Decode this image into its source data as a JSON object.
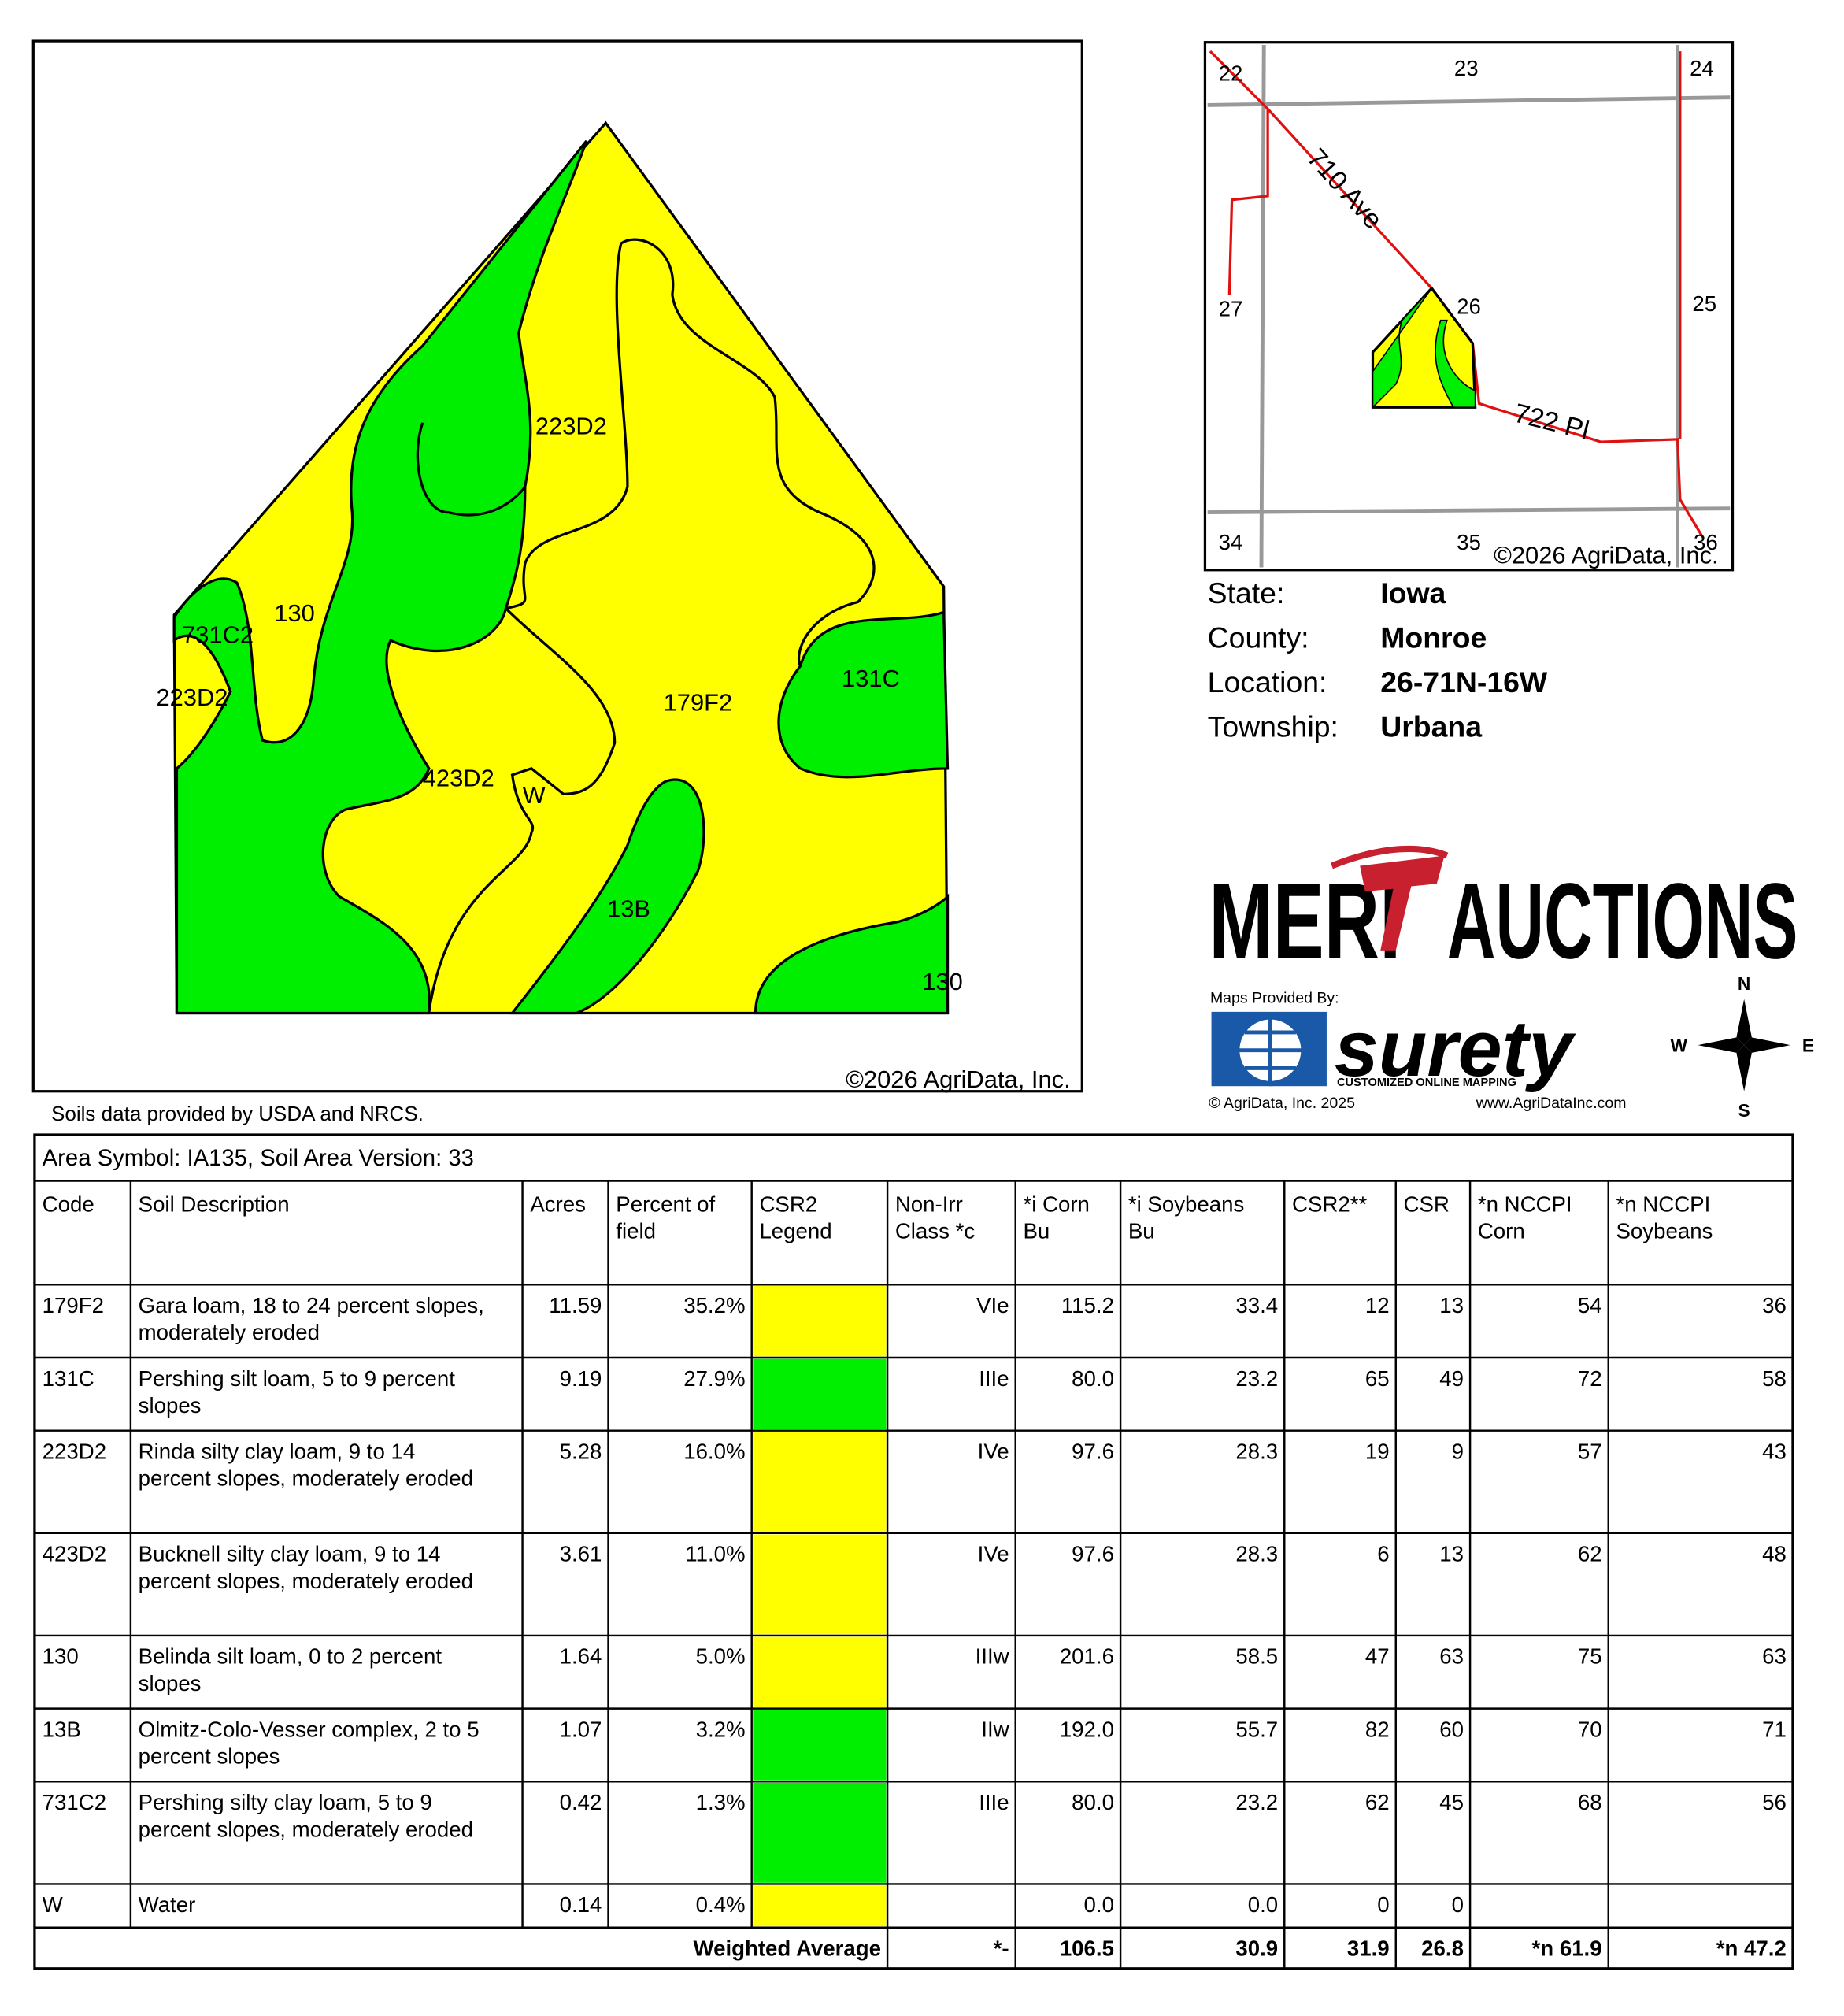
{
  "soil_map": {
    "labels": [
      "223D2",
      "130",
      "731C2",
      "223D2",
      "179F2",
      "131C",
      "423D2",
      "W",
      "13B",
      "130"
    ],
    "copyright": "©2026 AgriData, Inc."
  },
  "note": "Soils data provided by USDA and NRCS.",
  "location_map": {
    "sections": [
      "22",
      "23",
      "24",
      "27",
      "26",
      "25",
      "34",
      "35",
      "36"
    ],
    "roads": [
      "710 Ave",
      "722 Pl"
    ],
    "copyright": "©2026 AgriData, Inc."
  },
  "info": [
    {
      "label": "State:",
      "value": "Iowa"
    },
    {
      "label": "County:",
      "value": "Monroe"
    },
    {
      "label": "Location:",
      "value": "26-71N-16W"
    },
    {
      "label": "Township:",
      "value": "Urbana"
    }
  ],
  "logo": {
    "brand_left": "MERI",
    "brand_right": "AUCTIONS",
    "provided_by": "Maps Provided By:",
    "surety": "surety",
    "tagline": "CUSTOMIZED ONLINE MAPPING",
    "agridata": "© AgriData, Inc. 2025",
    "url": "www.AgriDataInc.com"
  },
  "compass": {
    "n": "N",
    "e": "E",
    "s": "S",
    "w": "W"
  },
  "table": {
    "title": "Area Symbol: IA135, Soil Area Version: 33",
    "columns": [
      [
        "Code"
      ],
      [
        "Soil Description"
      ],
      [
        "Acres"
      ],
      [
        "Percent of",
        "field"
      ],
      [
        "CSR2",
        "Legend"
      ],
      [
        "Non-Irr",
        "Class *c"
      ],
      [
        "*i Corn",
        "Bu"
      ],
      [
        "*i Soybeans",
        "Bu"
      ],
      [
        "CSR2**"
      ],
      [
        "CSR"
      ],
      [
        "*n NCCPI",
        "Corn"
      ],
      [
        "*n NCCPI",
        "Soybeans"
      ]
    ],
    "rows": [
      {
        "code": "179F2",
        "description": [
          "Gara loam, 18 to 24 percent slopes,",
          "moderately eroded"
        ],
        "acres": "11.59",
        "percent": "35.2%",
        "legend_color": "#ffff00",
        "class": "VIe",
        "corn": "115.2",
        "soybeans": "33.4",
        "csr2": "12",
        "csr": "13",
        "nccpi_corn": "54",
        "nccpi_soybeans": "36"
      },
      {
        "code": "131C",
        "description": [
          "Pershing silt loam, 5 to 9 percent",
          "slopes"
        ],
        "acres": "9.19",
        "percent": "27.9%",
        "legend_color": "#00ee00",
        "class": "IIIe",
        "corn": "80.0",
        "soybeans": "23.2",
        "csr2": "65",
        "csr": "49",
        "nccpi_corn": "72",
        "nccpi_soybeans": "58"
      },
      {
        "code": "223D2",
        "description": [
          "Rinda silty clay loam, 9 to 14",
          "percent slopes, moderately eroded"
        ],
        "acres": "5.28",
        "percent": "16.0%",
        "legend_color": "#ffff00",
        "class": "IVe",
        "corn": "97.6",
        "soybeans": "28.3",
        "csr2": "19",
        "csr": "9",
        "nccpi_corn": "57",
        "nccpi_soybeans": "43"
      },
      {
        "code": "423D2",
        "description": [
          "Bucknell silty clay loam, 9 to 14",
          "percent slopes, moderately eroded"
        ],
        "acres": "3.61",
        "percent": "11.0%",
        "legend_color": "#ffff00",
        "class": "IVe",
        "corn": "97.6",
        "soybeans": "28.3",
        "csr2": "6",
        "csr": "13",
        "nccpi_corn": "62",
        "nccpi_soybeans": "48"
      },
      {
        "code": "130",
        "description": [
          "Belinda silt loam, 0 to 2 percent",
          "slopes"
        ],
        "acres": "1.64",
        "percent": "5.0%",
        "legend_color": "#ffff00",
        "class": "IIIw",
        "corn": "201.6",
        "soybeans": "58.5",
        "csr2": "47",
        "csr": "63",
        "nccpi_corn": "75",
        "nccpi_soybeans": "63"
      },
      {
        "code": "13B",
        "description": [
          "Olmitz-Colo-Vesser complex, 2 to 5",
          "percent slopes"
        ],
        "acres": "1.07",
        "percent": "3.2%",
        "legend_color": "#00ee00",
        "class": "IIw",
        "corn": "192.0",
        "soybeans": "55.7",
        "csr2": "82",
        "csr": "60",
        "nccpi_corn": "70",
        "nccpi_soybeans": "71"
      },
      {
        "code": "731C2",
        "description": [
          "Pershing silty clay loam, 5 to 9",
          "percent slopes, moderately eroded"
        ],
        "acres": "0.42",
        "percent": "1.3%",
        "legend_color": "#00ee00",
        "class": "IIIe",
        "corn": "80.0",
        "soybeans": "23.2",
        "csr2": "62",
        "csr": "45",
        "nccpi_corn": "68",
        "nccpi_soybeans": "56"
      },
      {
        "code": "W",
        "description": [
          "Water"
        ],
        "acres": "0.14",
        "percent": "0.4%",
        "legend_color": "#ffff00",
        "corn": "0.0",
        "soybeans": "0.0",
        "csr2": "0",
        "csr": "0"
      }
    ],
    "footer": {
      "label": "Weighted Average",
      "class": "*-",
      "corn": "106.5",
      "soybeans": "30.9",
      "csr2": "31.9",
      "csr": "26.8",
      "nccpi_corn": "*n 61.9",
      "nccpi_soybeans": "*n 47.2"
    }
  }
}
